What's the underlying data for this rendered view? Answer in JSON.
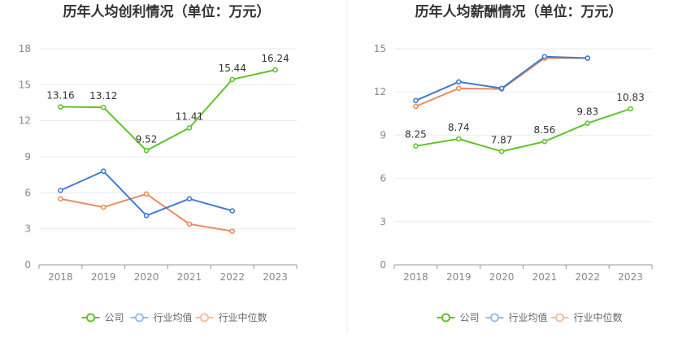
{
  "chart_data": [
    {
      "type": "line",
      "title": "历年人均创利情况（单位：万元）",
      "categories": [
        "2018",
        "2019",
        "2020",
        "2021",
        "2022",
        "2023"
      ],
      "ylim": [
        0,
        18
      ],
      "yticks": [
        0,
        3,
        6,
        9,
        12,
        15,
        18
      ],
      "grid": true,
      "legend_position": "bottom",
      "series": [
        {
          "name": "公司",
          "color": "#5cc529",
          "values": [
            13.16,
            13.12,
            9.52,
            11.41,
            15.44,
            16.24
          ],
          "labels": [
            "13.16",
            "13.12",
            "9.52",
            "11.41",
            "15.44",
            "16.24"
          ]
        },
        {
          "name": "行业均值",
          "color": "#3e7bd6",
          "values": [
            6.2,
            7.8,
            4.1,
            5.5,
            4.5,
            null
          ]
        },
        {
          "name": "行业中位数",
          "color": "#ee8a5f",
          "values": [
            5.5,
            4.8,
            5.9,
            3.4,
            2.8,
            null
          ]
        }
      ]
    },
    {
      "type": "line",
      "title": "历年人均薪酬情况（单位：万元）",
      "categories": [
        "2018",
        "2019",
        "2020",
        "2021",
        "2022",
        "2023"
      ],
      "ylim": [
        0,
        15
      ],
      "yticks": [
        0,
        3,
        6,
        9,
        12,
        15
      ],
      "grid": true,
      "legend_position": "bottom",
      "series": [
        {
          "name": "公司",
          "color": "#5cc529",
          "values": [
            8.25,
            8.74,
            7.87,
            8.56,
            9.83,
            10.83
          ],
          "labels": [
            "8.25",
            "8.74",
            "7.87",
            "8.56",
            "9.83",
            "10.83"
          ]
        },
        {
          "name": "行业均值",
          "color": "#3e7bd6",
          "values": [
            11.4,
            12.7,
            12.25,
            14.45,
            14.35,
            null
          ]
        },
        {
          "name": "行业中位数",
          "color": "#ee8a5f",
          "values": [
            11.0,
            12.25,
            12.2,
            14.35,
            14.35,
            null
          ]
        }
      ]
    }
  ],
  "legend": {
    "items": [
      {
        "name": "公司",
        "color": "#5cc529",
        "icon": "circle-line-icon"
      },
      {
        "name": "行业均值",
        "color": "#9bbcea",
        "icon": "circle-line-icon"
      },
      {
        "name": "行业中位数",
        "color": "#f3bfa6",
        "icon": "circle-line-icon"
      }
    ]
  }
}
